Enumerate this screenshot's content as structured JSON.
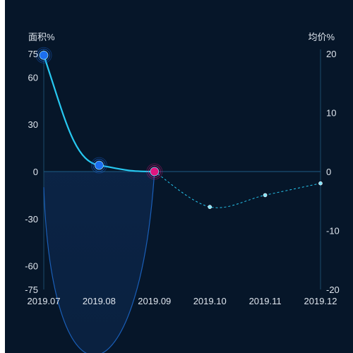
{
  "chart_data": {
    "type": "line",
    "categories": [
      "2019.07",
      "2019.08",
      "2019.09",
      "2019.10",
      "2019.11",
      "2019.12"
    ],
    "y_left": {
      "label": "面积%",
      "ticks": [
        75,
        60,
        30,
        0,
        -30,
        -60,
        -75
      ],
      "range": [
        -75,
        75
      ]
    },
    "y_right": {
      "label": "均价%",
      "ticks": [
        20,
        10,
        0,
        -10,
        -20
      ],
      "range": [
        -20,
        20
      ]
    },
    "series": [
      {
        "axis": "left",
        "style": "solid-smooth",
        "color": "#27c8f0",
        "values": [
          74,
          4,
          0,
          null,
          null,
          null
        ],
        "marker_colors": [
          "#1c6ff0",
          "#1c6ff0",
          "#e0157f"
        ]
      },
      {
        "axis": "left",
        "style": "area-curve",
        "color": "#1a5fb8",
        "values": [
          -10,
          -75,
          0,
          null,
          null,
          null
        ]
      },
      {
        "axis": "right",
        "style": "dashed",
        "color": "#27c8f0",
        "values": [
          null,
          null,
          0,
          -6,
          -4,
          -2
        ]
      }
    ],
    "grid": false
  },
  "colors": {
    "background": "#061629",
    "axis_line": "#1b4a6b",
    "zero_line": "#1d5c85",
    "tick_text": "#dfe6ee"
  }
}
